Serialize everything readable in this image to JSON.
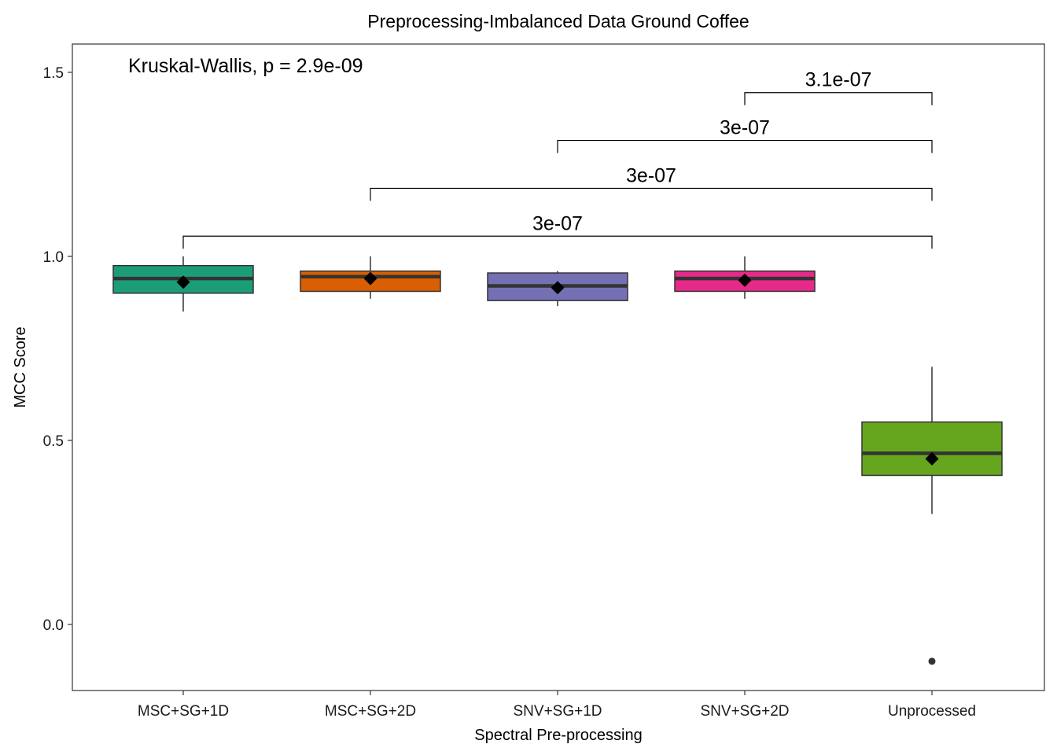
{
  "chart_data": {
    "type": "boxplot",
    "title": "Preprocessing-Imbalanced Data Ground Coffee",
    "xlabel": "Spectral Pre-processing",
    "ylabel": "MCC Score",
    "ylim": [
      -0.18,
      1.6
    ],
    "yticks": [
      0.0,
      0.5,
      1.0,
      1.5
    ],
    "ytick_labels": [
      "0.0",
      "0.5",
      "1.0",
      "1.5"
    ],
    "grid": false,
    "legend": "none",
    "categories": [
      "MSC+SG+1D",
      "MSC+SG+2D",
      "SNV+SG+1D",
      "SNV+SG+2D",
      "Unprocessed"
    ],
    "boxes": [
      {
        "category": "MSC+SG+1D",
        "color": "#1b9e77",
        "whisker_low": 0.85,
        "q1": 0.9,
        "median": 0.94,
        "q3": 0.975,
        "whisker_high": 1.0,
        "mean": 0.93,
        "outliers": []
      },
      {
        "category": "MSC+SG+2D",
        "color": "#d95f02",
        "whisker_low": 0.885,
        "q1": 0.905,
        "median": 0.945,
        "q3": 0.96,
        "whisker_high": 1.0,
        "mean": 0.94,
        "outliers": []
      },
      {
        "category": "SNV+SG+1D",
        "color": "#7570b3",
        "whisker_low": 0.865,
        "q1": 0.88,
        "median": 0.92,
        "q3": 0.955,
        "whisker_high": 0.96,
        "mean": 0.915,
        "outliers": []
      },
      {
        "category": "SNV+SG+2D",
        "color": "#e7298a",
        "whisker_low": 0.885,
        "q1": 0.905,
        "median": 0.94,
        "q3": 0.96,
        "whisker_high": 1.0,
        "mean": 0.935,
        "outliers": []
      },
      {
        "category": "Unprocessed",
        "color": "#66a61e",
        "whisker_low": 0.3,
        "q1": 0.405,
        "median": 0.465,
        "q3": 0.55,
        "whisker_high": 0.7,
        "mean": 0.45,
        "outliers": [
          -0.1
        ]
      }
    ],
    "global_test": "Kruskal-Wallis, p = 2.9e-09",
    "comparisons": [
      {
        "group1": "MSC+SG+1D",
        "group2": "Unprocessed",
        "y": 1.055,
        "label": "3e-07"
      },
      {
        "group1": "MSC+SG+2D",
        "group2": "Unprocessed",
        "y": 1.185,
        "label": "3e-07"
      },
      {
        "group1": "SNV+SG+1D",
        "group2": "Unprocessed",
        "y": 1.315,
        "label": "3e-07"
      },
      {
        "group1": "SNV+SG+2D",
        "group2": "Unprocessed",
        "y": 1.445,
        "label": "3.1e-07"
      }
    ],
    "colors": {
      "median_line": "#333333",
      "box_border": "#333333",
      "mean_marker": "#000000",
      "outlier": "#333333",
      "panel_border": "#333333"
    }
  }
}
